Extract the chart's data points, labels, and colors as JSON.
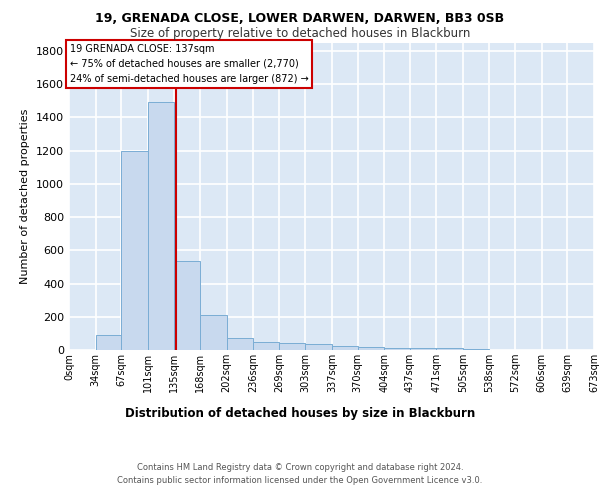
{
  "title": "19, GRENADA CLOSE, LOWER DARWEN, DARWEN, BB3 0SB",
  "subtitle": "Size of property relative to detached houses in Blackburn",
  "xlabel_dist": "Distribution of detached houses by size in Blackburn",
  "ylabel": "Number of detached properties",
  "bar_color": "#c8d9ee",
  "bar_edge_color": "#7aadd4",
  "background_color": "#dce8f5",
  "grid_color": "#ffffff",
  "bin_edges": [
    0,
    34,
    67,
    101,
    135,
    168,
    202,
    236,
    269,
    303,
    337,
    370,
    404,
    437,
    471,
    505,
    538,
    572,
    606,
    639,
    673
  ],
  "bar_heights": [
    0,
    90,
    1200,
    1490,
    535,
    210,
    75,
    50,
    45,
    35,
    25,
    20,
    15,
    10,
    15,
    5,
    2,
    0,
    0,
    0
  ],
  "property_line_x": 137,
  "property_line_color": "#cc0000",
  "ylim": [
    0,
    1850
  ],
  "yticks": [
    0,
    200,
    400,
    600,
    800,
    1000,
    1200,
    1400,
    1600,
    1800
  ],
  "annotation_title": "19 GRENADA CLOSE: 137sqm",
  "annotation_line1": "← 75% of detached houses are smaller (2,770)",
  "annotation_line2": "24% of semi-detached houses are larger (872) →",
  "annotation_box_color": "#ffffff",
  "annotation_box_edge": "#cc0000",
  "footnote1": "Contains HM Land Registry data © Crown copyright and database right 2024.",
  "footnote2": "Contains public sector information licensed under the Open Government Licence v3.0.",
  "tick_labels": [
    "0sqm",
    "34sqm",
    "67sqm",
    "101sqm",
    "135sqm",
    "168sqm",
    "202sqm",
    "236sqm",
    "269sqm",
    "303sqm",
    "337sqm",
    "370sqm",
    "404sqm",
    "437sqm",
    "471sqm",
    "505sqm",
    "538sqm",
    "572sqm",
    "606sqm",
    "639sqm",
    "673sqm"
  ]
}
